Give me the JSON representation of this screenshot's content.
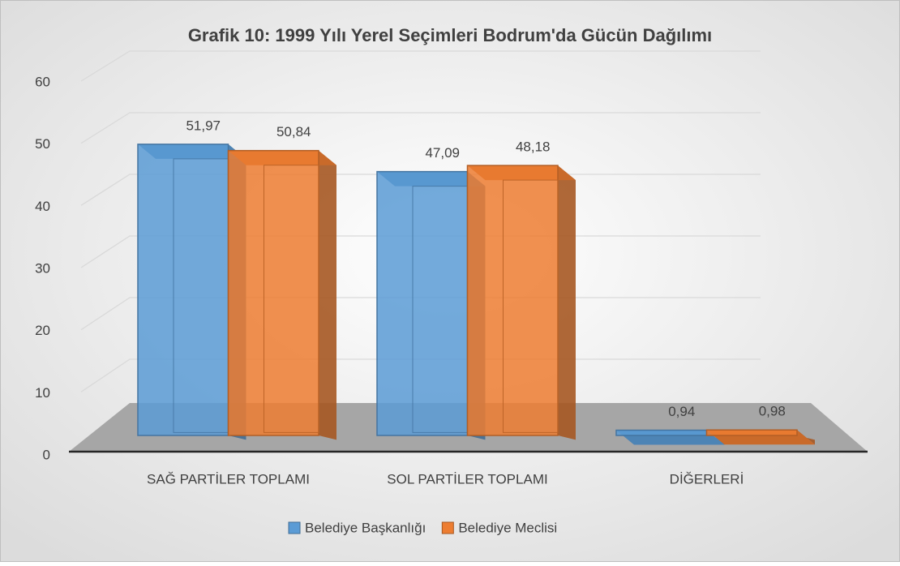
{
  "chart_data": {
    "type": "bar3d",
    "title": "Grafik 10: 1999 Yılı Yerel Seçimleri Bodrum'da Gücün Dağılımı",
    "categories": [
      "SAĞ PARTİLER TOPLAMI",
      "SOL PARTİLER TOPLAMI",
      "DİĞERLERİ"
    ],
    "series": [
      {
        "name": "Belediye Başkanlığı",
        "color": "#5b9bd5",
        "values": [
          51.97,
          47.09,
          0.94
        ],
        "value_labels": [
          "51,97",
          "47,09",
          "0,94"
        ]
      },
      {
        "name": "Belediye Meclisi",
        "color": "#ed7d31",
        "values": [
          50.84,
          48.18,
          0.98
        ],
        "value_labels": [
          "50,84",
          "48,18",
          "0,98"
        ]
      }
    ],
    "ylim": [
      0,
      60
    ],
    "yticks": [
      0,
      10,
      20,
      30,
      40,
      50,
      60
    ],
    "grid": true,
    "legend": "bottom"
  }
}
